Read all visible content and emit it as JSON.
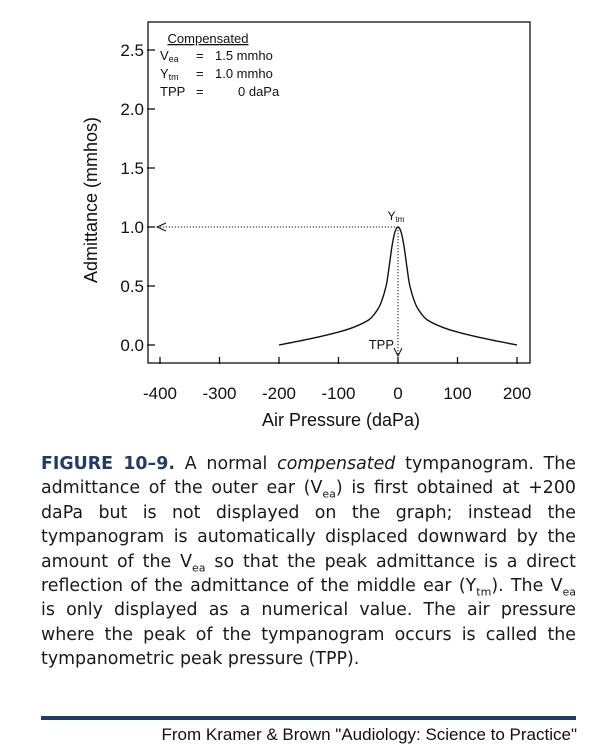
{
  "chart_data": {
    "type": "line",
    "xlabel": "Air Pressure (daPa)",
    "ylabel": "Admittance (mmhos)",
    "xlim": [
      -400,
      200
    ],
    "ylim": [
      0,
      2.5
    ],
    "xticks": [
      -400,
      -300,
      -200,
      -100,
      0,
      100,
      200
    ],
    "xtick_labels": [
      "-400",
      "-300",
      "-200",
      "-100",
      "0",
      "100",
      "200"
    ],
    "yticks": [
      0,
      0.5,
      1.0,
      1.5,
      2.0,
      2.5
    ],
    "ytick_labels": [
      "0.0",
      "0.5",
      "1.0",
      "1.5",
      "2.0",
      "2.5"
    ],
    "grid": false,
    "series": [
      {
        "x": [
          -200,
          -150,
          -100,
          -75,
          -50,
          -40,
          -30,
          -20,
          -15,
          -10,
          -5,
          0,
          5,
          10,
          15,
          20,
          30,
          40,
          50,
          75,
          100,
          150,
          200
        ],
        "y": [
          0.0,
          0.05,
          0.11,
          0.15,
          0.21,
          0.26,
          0.34,
          0.5,
          0.66,
          0.84,
          0.96,
          1.0,
          0.96,
          0.84,
          0.66,
          0.5,
          0.34,
          0.26,
          0.21,
          0.15,
          0.11,
          0.05,
          0.0
        ]
      }
    ],
    "legend": {
      "title": "Compensated",
      "rows": [
        {
          "label_main": "V",
          "label_sub": "ea",
          "eq": "=",
          "value": "1.5 mmho"
        },
        {
          "label_main": "Y",
          "label_sub": "tm",
          "eq": "=",
          "value": "1.0 mmho"
        },
        {
          "label_main": "TPP",
          "label_sub": "",
          "eq": "=",
          "value": "0 daPa"
        }
      ]
    },
    "annotations": {
      "peak": {
        "main": "Y",
        "sub": "tm",
        "x": 0,
        "y": 1.0
      },
      "tpp": {
        "text": "TPP",
        "x": 0
      }
    }
  },
  "caption": {
    "fig_label": "FIGURE 10–9.",
    "seg1": " A normal ",
    "em1": "compensated",
    "seg2": " tympanogram. The admittance of the outer ear (V",
    "sub1": "ea",
    "seg3": ") is first obtained at +200 daPa but is not displayed on the graph; instead the tympanogram is automatically displaced downward by the amount of the V",
    "sub2": "ea",
    "seg4": " so that the peak admittance is a direct reflection of the admittance of the middle ear (Y",
    "sub3": "tm",
    "seg5": "). The V",
    "sub4": "ea",
    "seg6": " is only displayed as a numerical value. The air pressure where the peak of the tympanogram occurs is called the tympanometric peak pressure (TPP)."
  },
  "source": "From Kramer & Brown \"Audiology: Science to Practice\"",
  "colors": {
    "accent": "#1f3b66",
    "line": "#111111"
  }
}
